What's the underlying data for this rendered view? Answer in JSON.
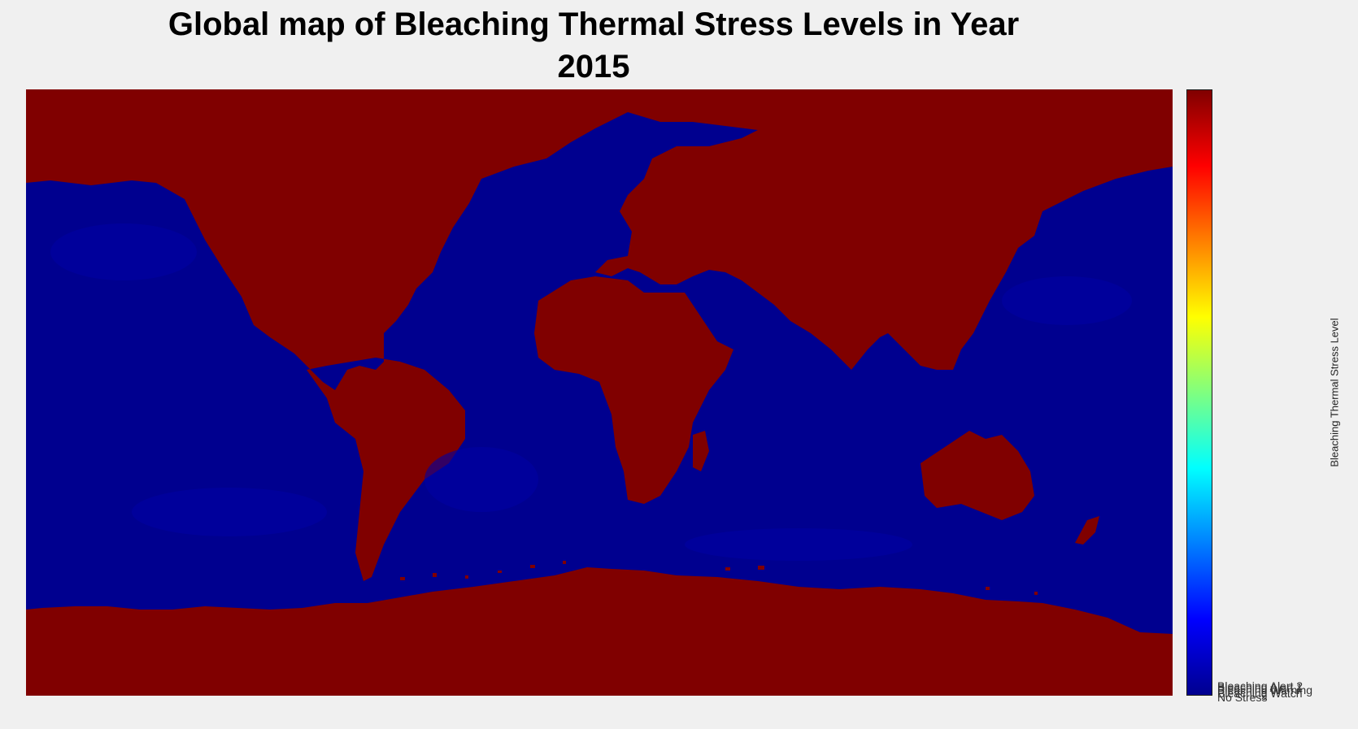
{
  "title_line1": "Global map of Bleaching Thermal Stress Levels in Year",
  "title_line2": "2015",
  "colorbar": {
    "label": "Bleaching Thermal Stress Level",
    "ticks": [
      "Bleaching Alert 2",
      "Bleaching Alert 1",
      "Bleaching Warning",
      "Bleaching Watch",
      "No Stress"
    ],
    "colormap": "jet",
    "range": [
      0,
      4
    ]
  },
  "map": {
    "ocean_color": "#00008f",
    "land_color": "#800000",
    "projection": "equirectangular",
    "lon_range": [
      -180,
      180
    ],
    "lat_range": [
      -90,
      90
    ]
  }
}
